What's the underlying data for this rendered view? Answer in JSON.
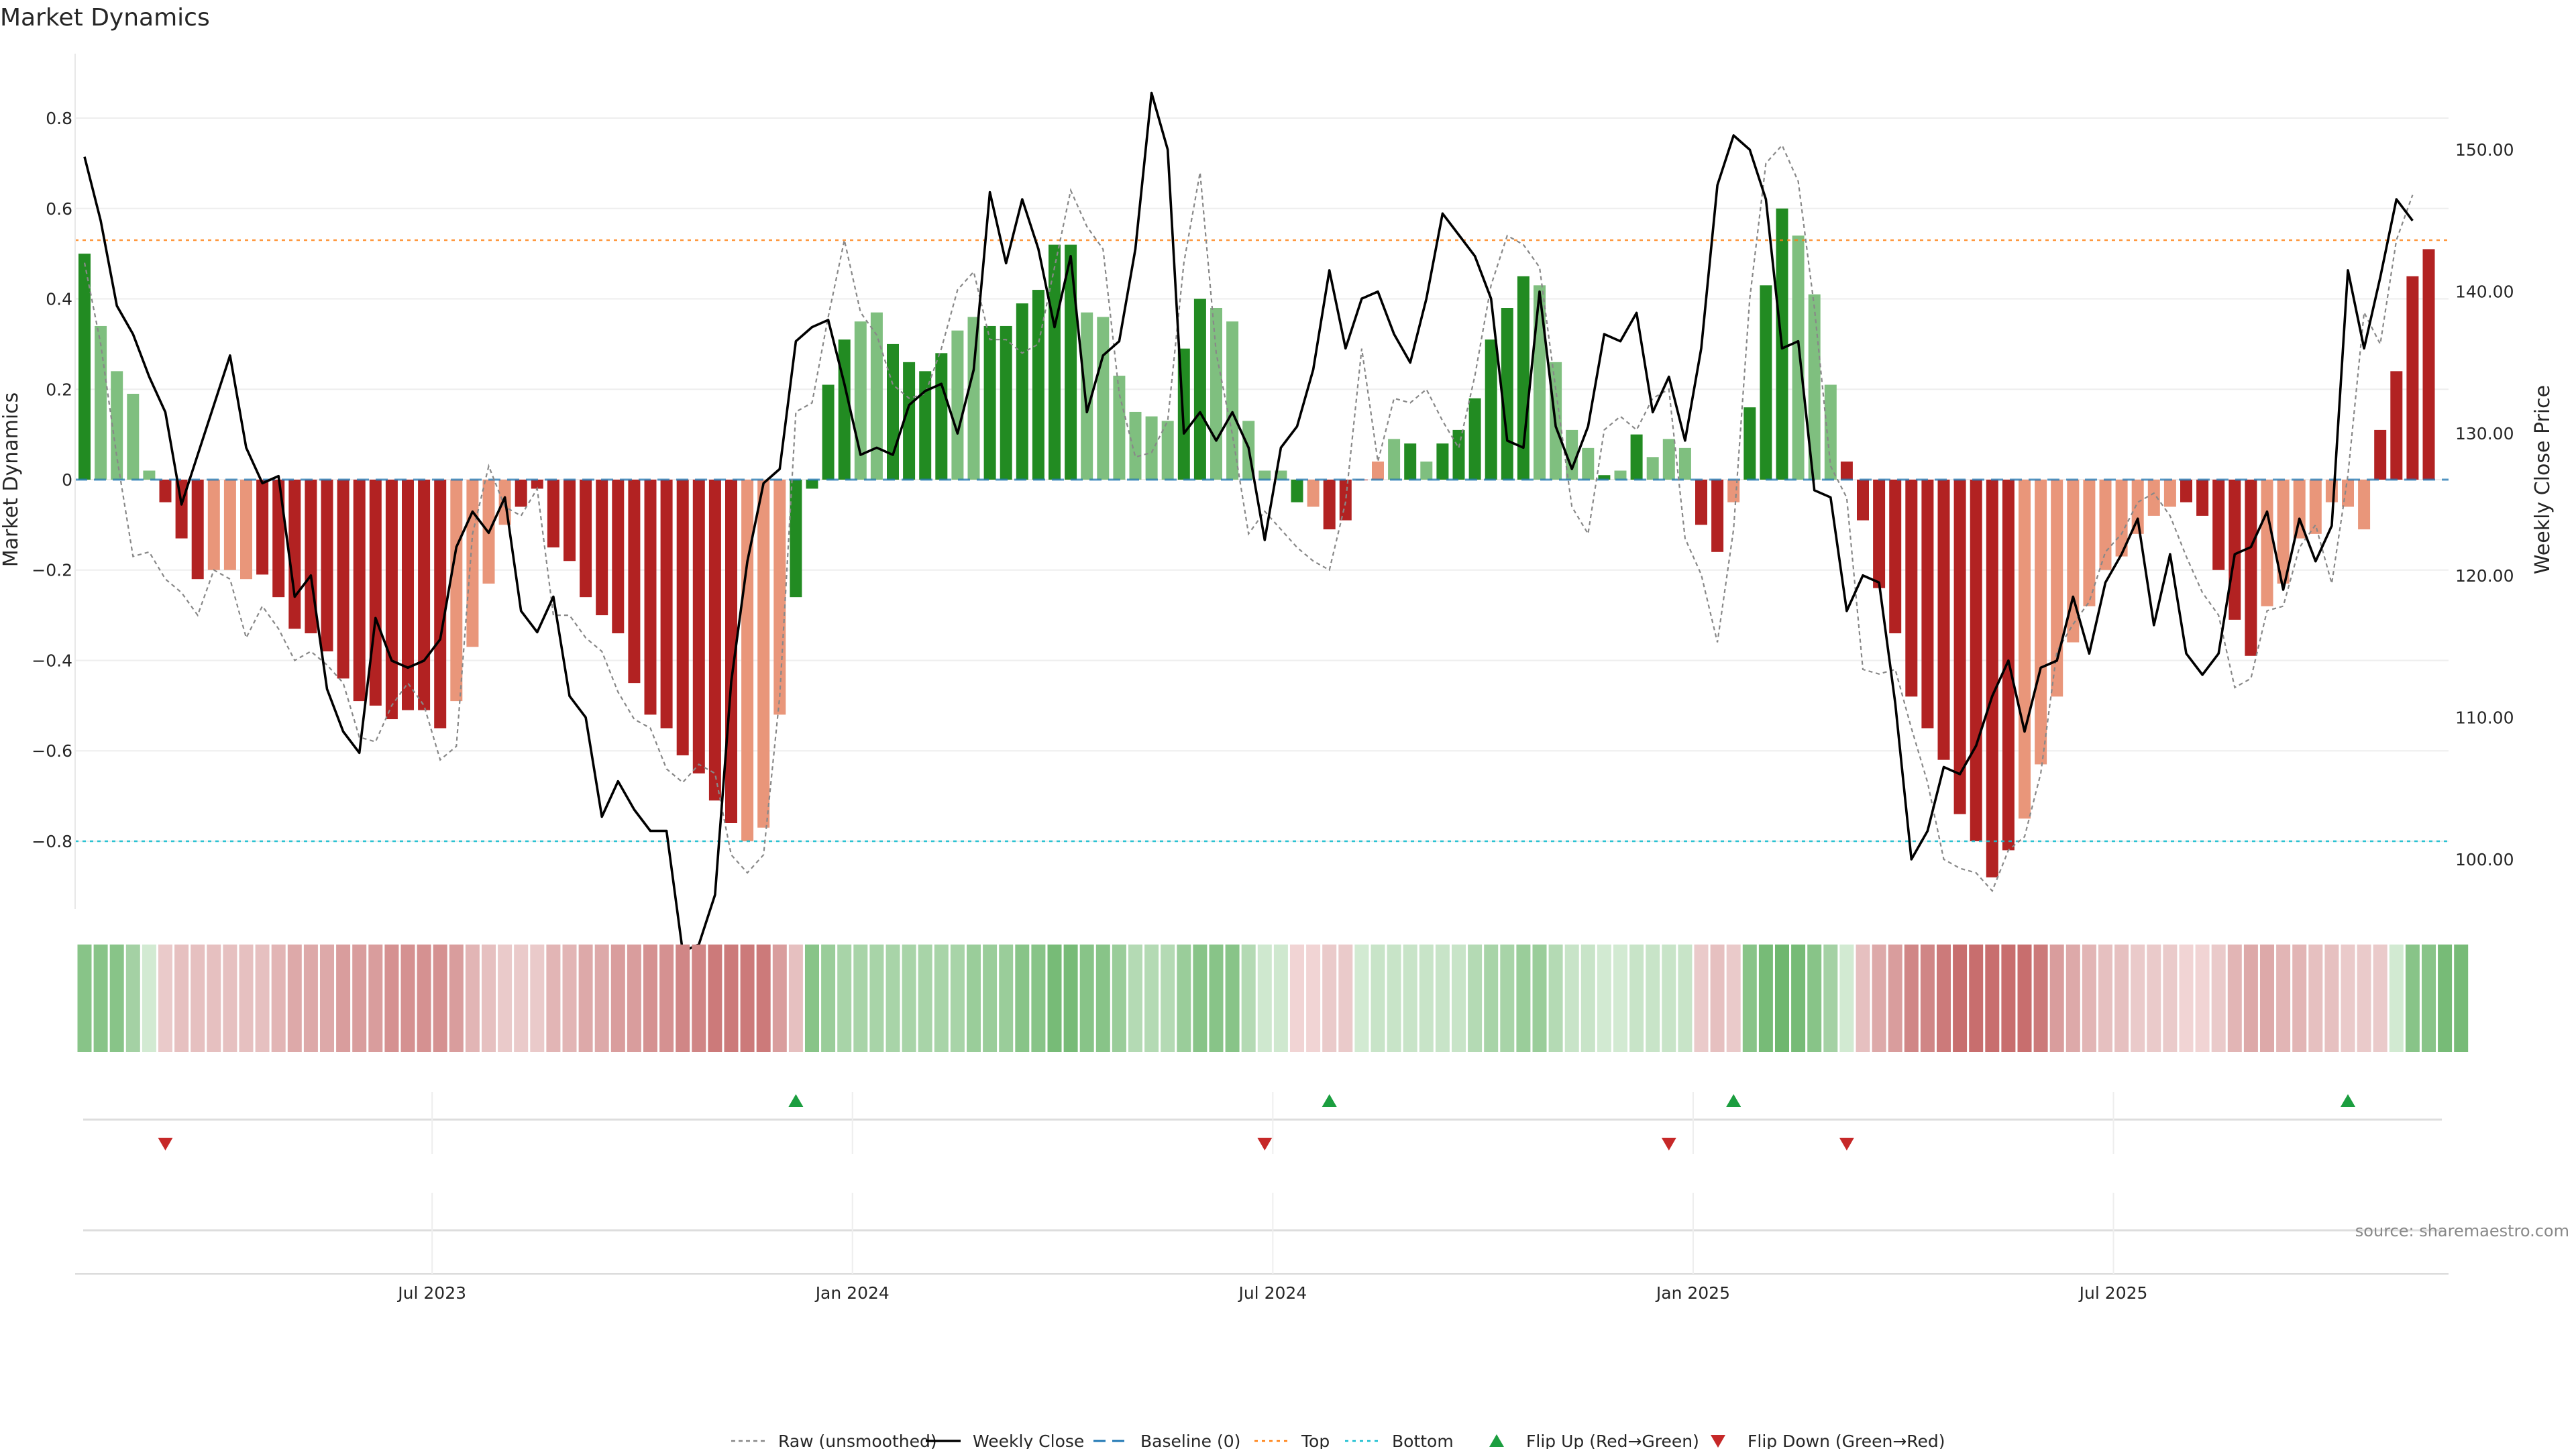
{
  "chart_data": {
    "type": "bar",
    "title": "Market Dynamics",
    "ylabel_left": "Market Dynamics",
    "ylabel_right": "Weekly Close Price",
    "ylim_left": [
      -0.95,
      0.95
    ],
    "ylim_right": [
      96.5,
      157
    ],
    "left_ticks": [
      "0.8",
      "0.6",
      "0.4",
      "0.2",
      "0",
      "−0.2",
      "−0.4",
      "−0.6",
      "−0.8"
    ],
    "left_tick_values": [
      0.8,
      0.6,
      0.4,
      0.2,
      0,
      -0.2,
      -0.4,
      -0.6,
      -0.8
    ],
    "right_ticks": [
      "150.00",
      "140.00",
      "130.00",
      "120.00",
      "110.00",
      "100.00"
    ],
    "right_tick_values": [
      150,
      140,
      130,
      120,
      110,
      100
    ],
    "x_ticks": [
      "Jul 2023",
      "Jan 2024",
      "Jul 2024",
      "Jan 2025",
      "Jul 2025"
    ],
    "x_tick_weeks": [
      21.5,
      47.5,
      73.5,
      99.5,
      125.5
    ],
    "top_level": 0.53,
    "bottom_level": -0.8,
    "baseline": 0,
    "bar_colors": {
      "strong_up": "#228b22",
      "weak_up": "#7fbf7f",
      "strong_down": "#b22222",
      "weak_down": "#e9967a"
    },
    "bar_kind_codes": "G=strong up, g=weak up, R=strong down, r=weak down",
    "bar_kinds": "GggggRRRrrrRRRRRRRRRRRRrrrrRRRRRRRRRRRRRRrrrGGGGggGGGGggGGGGGGggggggGGgggggGrRRRrgGgGGGGGGggggGgGgggRRrGGGgggRRRRRRRRRRRrrrrrrrrrrRRRRRrrrrrrrRRRRGGGG",
    "momentum": [
      0.5,
      0.34,
      0.24,
      0.19,
      0.02,
      -0.05,
      -0.13,
      -0.22,
      -0.2,
      -0.2,
      -0.22,
      -0.21,
      -0.26,
      -0.33,
      -0.34,
      -0.38,
      -0.44,
      -0.49,
      -0.5,
      -0.53,
      -0.51,
      -0.51,
      -0.55,
      -0.49,
      -0.37,
      -0.23,
      -0.1,
      -0.06,
      -0.02,
      -0.15,
      -0.18,
      -0.26,
      -0.3,
      -0.34,
      -0.45,
      -0.52,
      -0.55,
      -0.61,
      -0.65,
      -0.71,
      -0.76,
      -0.8,
      -0.77,
      -0.52,
      -0.26,
      -0.02,
      0.21,
      0.31,
      0.35,
      0.37,
      0.3,
      0.26,
      0.24,
      0.28,
      0.33,
      0.36,
      0.34,
      0.34,
      0.39,
      0.42,
      0.52,
      0.52,
      0.37,
      0.36,
      0.23,
      0.15,
      0.14,
      0.13,
      0.29,
      0.4,
      0.38,
      0.35,
      0.13,
      0.02,
      0.02,
      -0.05,
      -0.06,
      -0.11,
      -0.09,
      0.0,
      0.04,
      0.09,
      0.08,
      0.04,
      0.08,
      0.11,
      0.18,
      0.31,
      0.38,
      0.45,
      0.43,
      0.26,
      0.11,
      0.07,
      0.01,
      0.02,
      0.1,
      0.05,
      0.09,
      0.07,
      -0.1,
      -0.16,
      -0.05,
      0.16,
      0.43,
      0.6,
      0.54,
      0.41,
      0.21,
      0.04,
      -0.09,
      -0.24,
      -0.34,
      -0.48,
      -0.55,
      -0.62,
      -0.74,
      -0.8,
      -0.88,
      -0.82,
      -0.75,
      -0.63,
      -0.48,
      -0.36,
      -0.28,
      -0.2,
      -0.17,
      -0.12,
      -0.08,
      -0.06,
      -0.05,
      -0.08,
      -0.2,
      -0.31,
      -0.39,
      -0.28,
      -0.23,
      -0.13,
      -0.12,
      -0.05,
      -0.06,
      -0.11,
      0.11,
      0.24,
      0.45,
      0.51
    ],
    "raw_unsmoothed": [
      0.48,
      0.3,
      0.05,
      -0.17,
      -0.16,
      -0.22,
      -0.25,
      -0.3,
      -0.2,
      -0.22,
      -0.35,
      -0.28,
      -0.33,
      -0.4,
      -0.38,
      -0.41,
      -0.45,
      -0.57,
      -0.58,
      -0.5,
      -0.45,
      -0.5,
      -0.62,
      -0.59,
      -0.12,
      0.03,
      -0.06,
      -0.08,
      -0.02,
      -0.3,
      -0.3,
      -0.35,
      -0.38,
      -0.47,
      -0.53,
      -0.55,
      -0.64,
      -0.67,
      -0.63,
      -0.65,
      -0.83,
      -0.87,
      -0.83,
      -0.48,
      0.15,
      0.17,
      0.36,
      0.53,
      0.37,
      0.32,
      0.21,
      0.18,
      0.19,
      0.29,
      0.42,
      0.46,
      0.31,
      0.31,
      0.28,
      0.3,
      0.47,
      0.64,
      0.56,
      0.51,
      0.19,
      0.05,
      0.06,
      0.13,
      0.48,
      0.68,
      0.28,
      0.1,
      -0.12,
      -0.07,
      -0.11,
      -0.15,
      -0.18,
      -0.2,
      -0.05,
      0.29,
      0.04,
      0.18,
      0.17,
      0.2,
      0.13,
      0.07,
      0.23,
      0.43,
      0.54,
      0.52,
      0.47,
      0.2,
      -0.06,
      -0.12,
      0.11,
      0.14,
      0.11,
      0.18,
      0.2,
      -0.13,
      -0.21,
      -0.36,
      -0.11,
      0.4,
      0.7,
      0.74,
      0.66,
      0.38,
      0.03,
      -0.04,
      -0.42,
      -0.43,
      -0.42,
      -0.55,
      -0.67,
      -0.84,
      -0.86,
      -0.87,
      -0.91,
      -0.82,
      -0.79,
      -0.65,
      -0.38,
      -0.32,
      -0.27,
      -0.16,
      -0.12,
      -0.05,
      -0.03,
      -0.08,
      -0.17,
      -0.25,
      -0.3,
      -0.46,
      -0.44,
      -0.29,
      -0.28,
      -0.15,
      -0.1,
      -0.23,
      0.01,
      0.37,
      0.3,
      0.53,
      0.63
    ],
    "weekly_close": [
      149.5,
      145.0,
      139.0,
      137.0,
      134.0,
      131.5,
      125.0,
      128.5,
      132.0,
      135.5,
      129.0,
      126.5,
      127.0,
      118.5,
      120.0,
      112.0,
      109.0,
      107.5,
      117.0,
      114.0,
      113.5,
      114.0,
      115.5,
      122.0,
      124.5,
      123.0,
      125.5,
      117.5,
      116.0,
      118.5,
      111.5,
      110.0,
      103.0,
      105.5,
      103.5,
      102.0,
      102.0,
      93.5,
      94.0,
      97.5,
      112.5,
      121.0,
      126.5,
      127.5,
      136.5,
      137.5,
      138.0,
      133.5,
      128.5,
      129.0,
      128.5,
      132.0,
      133.0,
      133.5,
      130.0,
      134.5,
      147.0,
      142.0,
      146.5,
      143.0,
      137.5,
      142.5,
      131.5,
      135.5,
      136.5,
      143.0,
      154.0,
      150.0,
      130.0,
      131.5,
      129.5,
      131.5,
      129.0,
      122.5,
      129.0,
      130.5,
      134.5,
      141.5,
      136.0,
      139.5,
      140.0,
      137.0,
      135.0,
      139.5,
      145.5,
      144.0,
      142.5,
      139.5,
      129.5,
      129.0,
      140.0,
      130.5,
      127.5,
      130.5,
      137.0,
      136.5,
      138.5,
      131.5,
      134.0,
      129.5,
      136.0,
      147.5,
      151.0,
      150.0,
      146.5,
      136.0,
      136.5,
      126.0,
      125.5,
      117.5,
      120.0,
      119.5,
      111.0,
      100.0,
      102.0,
      106.5,
      106.0,
      108.0,
      111.5,
      114.0,
      109.0,
      113.5,
      114.0,
      118.5,
      114.5,
      119.5,
      121.5,
      124.0,
      116.5,
      121.5,
      114.5,
      113.0,
      114.5,
      121.5,
      122.0,
      124.5,
      119.0,
      124.0,
      121.0,
      123.5,
      141.5,
      136.0,
      141.0,
      146.5,
      145.0
    ],
    "heat_strip_colors": [
      "#88c488",
      "#88c488",
      "#88c488",
      "#a4d1a4",
      "#d2ead2",
      "#eacaca",
      "#e6c0c0",
      "#e6c0c0",
      "#e6c0c0",
      "#e6c0c0",
      "#e6c0c0",
      "#e6c0c0",
      "#e2b5b5",
      "#dda9a9",
      "#dda9a9",
      "#dda9a9",
      "#d99d9d",
      "#d99d9d",
      "#d99d9d",
      "#d59191",
      "#d59191",
      "#d59191",
      "#d59191",
      "#d99d9d",
      "#e2b5b5",
      "#e6c0c0",
      "#eacaca",
      "#eacaca",
      "#eacaca",
      "#e2b5b5",
      "#e2b5b5",
      "#dda9a9",
      "#dda9a9",
      "#d99d9d",
      "#d99d9d",
      "#d59191",
      "#d59191",
      "#d08686",
      "#d08686",
      "#cc7a7a",
      "#cc7a7a",
      "#cc7a7a",
      "#cc7a7a",
      "#d99d9d",
      "#e6c0c0",
      "#88c488",
      "#9acd9a",
      "#a8d4a8",
      "#a8d4a8",
      "#a8d4a8",
      "#a8d4a8",
      "#a8d4a8",
      "#a8d4a8",
      "#a8d4a8",
      "#a8d4a8",
      "#9acd9a",
      "#9acd9a",
      "#9acd9a",
      "#88c488",
      "#88c488",
      "#77bb77",
      "#77bb77",
      "#88c488",
      "#88c488",
      "#9acd9a",
      "#b4dab4",
      "#b4dab4",
      "#b4dab4",
      "#9acd9a",
      "#88c488",
      "#88c488",
      "#88c488",
      "#b4dab4",
      "#cfe8cf",
      "#cfe8cf",
      "#f1d4d4",
      "#f1d4d4",
      "#eacaca",
      "#eacaca",
      "#d2ead2",
      "#c8e4c8",
      "#c8e4c8",
      "#c8e4c8",
      "#c8e4c8",
      "#c8e4c8",
      "#c8e4c8",
      "#b4dab4",
      "#a8d4a8",
      "#a8d4a8",
      "#9acd9a",
      "#9acd9a",
      "#b4dab4",
      "#c8e4c8",
      "#c8e4c8",
      "#d2ead2",
      "#d2ead2",
      "#c8e4c8",
      "#c8e4c8",
      "#c8e4c8",
      "#c8e4c8",
      "#eacaca",
      "#e6c0c0",
      "#eacaca",
      "#88c488",
      "#77bb77",
      "#6fb76f",
      "#77bb77",
      "#88c488",
      "#a4d1a4",
      "#d2ead2",
      "#e6c0c0",
      "#dda9a9",
      "#d99d9d",
      "#d08686",
      "#d08686",
      "#cc7a7a",
      "#c86e6e",
      "#c86e6e",
      "#c86e6e",
      "#c86e6e",
      "#c86e6e",
      "#cc7a7a",
      "#d99d9d",
      "#dda9a9",
      "#e2b5b5",
      "#e6c0c0",
      "#e6c0c0",
      "#eacaca",
      "#eacaca",
      "#eacaca",
      "#f1d4d4",
      "#f1d4d4",
      "#eacaca",
      "#e2b5b5",
      "#dda9a9",
      "#dda9a9",
      "#e2b5b5",
      "#e2b5b5",
      "#e6c0c0",
      "#e6c0c0",
      "#eacaca",
      "#eacaca",
      "#eacaca",
      "#d2ead2",
      "#88c488",
      "#88c488",
      "#77bb77",
      "#77bb77"
    ],
    "flip_up_weeks": [
      44,
      77,
      102,
      140
    ],
    "flip_down_weeks": [
      5,
      73,
      98,
      109
    ],
    "colors": {
      "raw": "#888888",
      "weekly_close": "#000000",
      "baseline": "#1f77b4",
      "top": "#ff7f0e",
      "bottom": "#17becf",
      "flip_up": "#1b9e3f",
      "flip_down": "#c62828"
    },
    "legend": [
      {
        "key": "raw",
        "label": "Raw (unsmoothed)"
      },
      {
        "key": "close",
        "label": "Weekly Close"
      },
      {
        "key": "baseline",
        "label": "Baseline (0)"
      },
      {
        "key": "top",
        "label": "Top"
      },
      {
        "key": "bottom",
        "label": "Bottom"
      },
      {
        "key": "flip_up",
        "label": "Flip Up (Red→Green)"
      },
      {
        "key": "flip_down",
        "label": "Flip Down (Green→Red)"
      }
    ],
    "source": "source: sharemaestro.com"
  }
}
